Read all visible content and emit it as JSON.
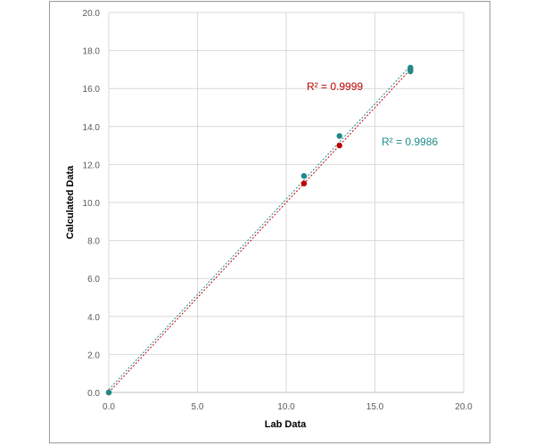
{
  "chart_data": {
    "type": "scatter",
    "title": "",
    "xlabel": "Lab Data",
    "ylabel": "Calculated Data",
    "xlim": [
      0,
      20
    ],
    "ylim": [
      0,
      20
    ],
    "x_ticks": [
      "0.0",
      "5.0",
      "10.0",
      "15.0",
      "20.0"
    ],
    "y_ticks": [
      "0.0",
      "2.0",
      "4.0",
      "6.0",
      "8.0",
      "10.0",
      "12.0",
      "14.0",
      "16.0",
      "18.0",
      "20.0"
    ],
    "grid": true,
    "legend": "none",
    "series": [
      {
        "color": "#c00000",
        "points": [
          [
            0.0,
            0.0
          ],
          [
            11.0,
            11.0
          ],
          [
            13.0,
            13.0
          ],
          [
            17.0,
            17.0
          ]
        ],
        "trendline": "linear, dotted",
        "r2_label": "R² = 0.9999"
      },
      {
        "color": "#1f8a8a",
        "points": [
          [
            0.0,
            0.0
          ],
          [
            11.0,
            11.4
          ],
          [
            13.0,
            13.5
          ],
          [
            17.0,
            17.1
          ],
          [
            17.0,
            16.9
          ]
        ],
        "trendline": "linear, dotted",
        "r2_label": "R² = 0.9986"
      }
    ]
  }
}
